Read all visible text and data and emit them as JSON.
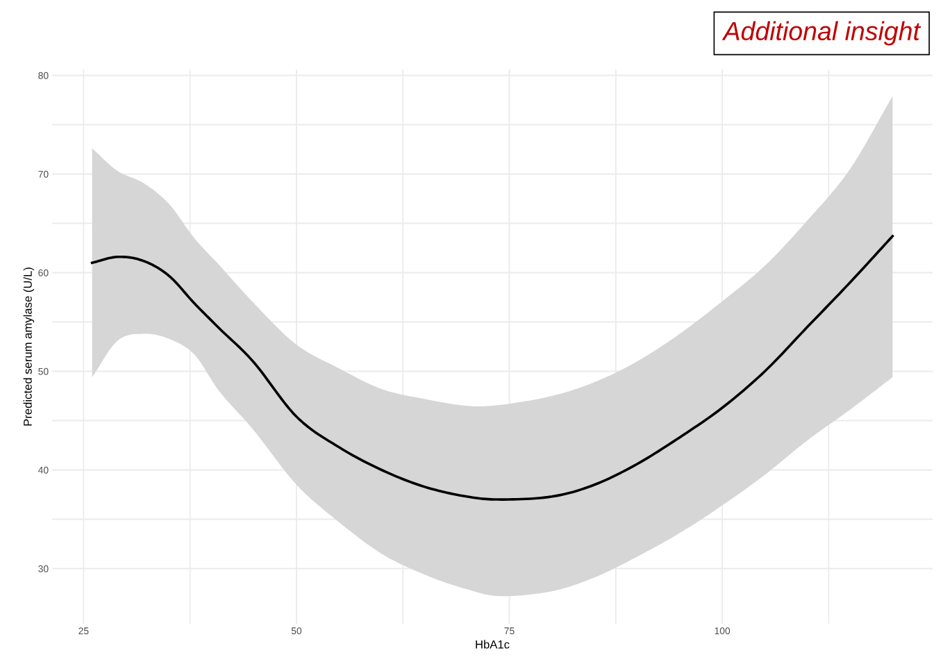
{
  "chart_data": {
    "type": "line",
    "xlabel": "HbA1c",
    "ylabel": "Predicted serum amylase (U/L)",
    "annotations": [
      "Additional insight"
    ],
    "xlim": [
      21.3,
      124.7
    ],
    "ylim": [
      24.4,
      80.6
    ],
    "xticks": [
      25,
      {
        "value": 37.5,
        "label": null
      },
      50,
      {
        "value": 62.5,
        "label": null
      },
      75,
      {
        "value": 87.5,
        "label": null
      },
      100,
      {
        "value": 112.5,
        "label": null
      }
    ],
    "yticks": [
      30,
      {
        "value": 35,
        "label": null
      },
      40,
      {
        "value": 45,
        "label": null
      },
      50,
      {
        "value": 55,
        "label": null
      },
      60,
      {
        "value": 65,
        "label": null
      },
      70,
      {
        "value": 75,
        "label": null
      },
      80
    ],
    "grid": true,
    "series": [
      {
        "color": "#000000",
        "x": [
          26,
          29,
          32,
          35,
          38,
          41,
          45,
          50,
          55,
          60,
          65,
          70,
          74,
          80,
          85,
          90,
          95,
          100,
          105,
          110,
          115,
          120
        ],
        "values": [
          61.0,
          61.6,
          61.2,
          59.7,
          56.9,
          54.3,
          50.9,
          45.4,
          42.3,
          40.0,
          38.3,
          37.3,
          37.0,
          37.3,
          38.5,
          40.6,
          43.3,
          46.3,
          50.0,
          54.5,
          59.0,
          63.7
        ],
        "upper": [
          72.6,
          70.3,
          69.1,
          67.0,
          63.5,
          60.7,
          56.9,
          52.7,
          50.3,
          48.2,
          47.2,
          46.5,
          46.6,
          47.5,
          48.9,
          51.0,
          53.8,
          57.1,
          60.7,
          65.3,
          70.5,
          77.9
        ],
        "lower": [
          49.4,
          53.1,
          53.8,
          53.3,
          51.7,
          47.9,
          44.0,
          38.5,
          34.7,
          31.5,
          29.4,
          27.9,
          27.2,
          27.7,
          29.1,
          31.2,
          33.6,
          36.4,
          39.5,
          43.0,
          46.1,
          49.4
        ]
      }
    ]
  }
}
